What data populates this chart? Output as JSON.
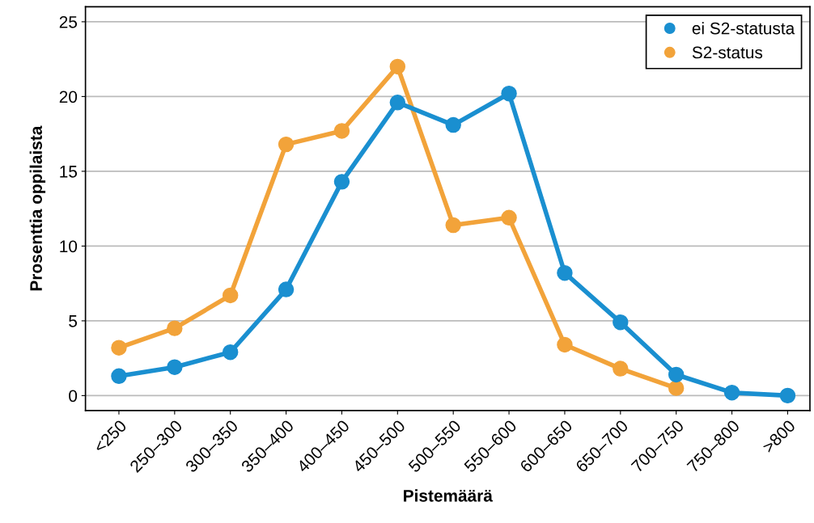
{
  "chart_data": {
    "type": "line",
    "xlabel": "Pistemäärä",
    "ylabel": "Prosenttia oppilaista",
    "categories": [
      "<250",
      "250–300",
      "300–350",
      "350–400",
      "400–450",
      "450–500",
      "500–550",
      "550–600",
      "600–650",
      "650–700",
      "700–750",
      "750–800",
      ">800"
    ],
    "series": [
      {
        "name": "ei S2-statusta",
        "color": "#1a8fd0",
        "values": [
          1.3,
          1.9,
          2.9,
          7.1,
          14.3,
          19.6,
          18.1,
          20.2,
          8.2,
          4.9,
          1.4,
          0.2,
          0.0
        ]
      },
      {
        "name": "S2-status",
        "color": "#f2a33a",
        "values": [
          3.2,
          4.5,
          6.7,
          16.8,
          17.7,
          22.0,
          11.4,
          11.9,
          3.4,
          1.8,
          0.5,
          null,
          null
        ]
      }
    ],
    "ylim": [
      -1,
      26
    ],
    "yticks": [
      0,
      5,
      10,
      15,
      20,
      25
    ],
    "grid": "y",
    "legend": "top right",
    "marker": "circle",
    "line_style": "solid"
  }
}
